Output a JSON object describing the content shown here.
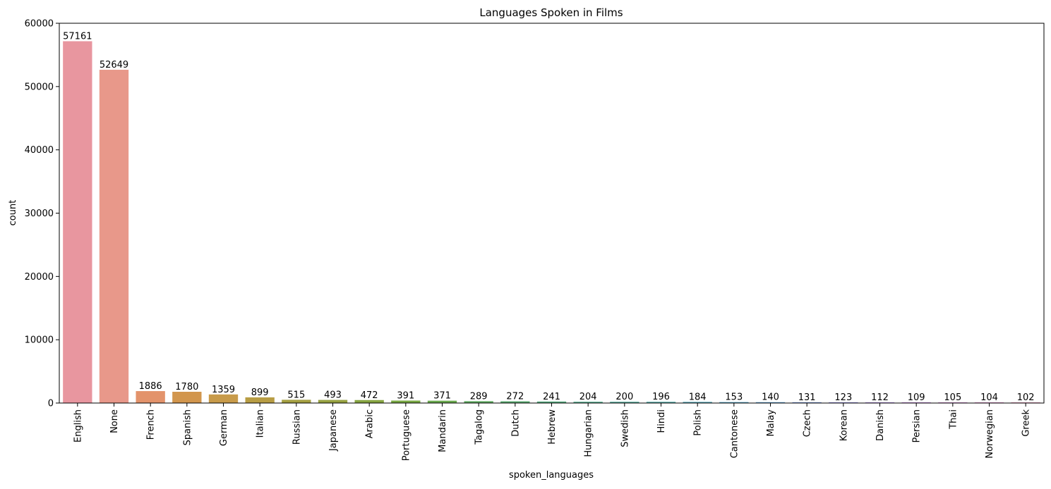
{
  "chart_data": {
    "type": "bar",
    "title": "Languages Spoken in Films",
    "xlabel": "spoken_languages",
    "ylabel": "count",
    "ylim": [
      0,
      60000
    ],
    "yticks": [
      0,
      10000,
      20000,
      30000,
      40000,
      50000,
      60000
    ],
    "grid": false,
    "categories": [
      "English",
      "None",
      "French",
      "Spanish",
      "German",
      "Italian",
      "Russian",
      "Japanese",
      "Arabic",
      "Portuguese",
      "Mandarin",
      "Tagalog",
      "Dutch",
      "Hebrew",
      "Hungarian",
      "Swedish",
      "Hindi",
      "Polish",
      "Cantonese",
      "Malay",
      "Czech",
      "Korean",
      "Danish",
      "Persian",
      "Thai",
      "Norwegian",
      "Greek"
    ],
    "values": [
      57161,
      52649,
      1886,
      1780,
      1359,
      899,
      515,
      493,
      472,
      391,
      371,
      289,
      272,
      241,
      204,
      200,
      196,
      184,
      153,
      140,
      131,
      123,
      112,
      109,
      105,
      104,
      102
    ],
    "colors": [
      "#e8969f",
      "#e8988a",
      "#e3936b",
      "#d2964d",
      "#c89b4a",
      "#b89d44",
      "#a5a042",
      "#97a241",
      "#87a542",
      "#78a843",
      "#6aaa4e",
      "#5ea95f",
      "#58a96e",
      "#55a97d",
      "#54a98b",
      "#53a898",
      "#52a7a5",
      "#54a5b3",
      "#56a3c3",
      "#62a0d2",
      "#7a9add",
      "#9690e3",
      "#ae86e3",
      "#c480df",
      "#d17ed4",
      "#e07ec7",
      "#e889b6"
    ]
  }
}
